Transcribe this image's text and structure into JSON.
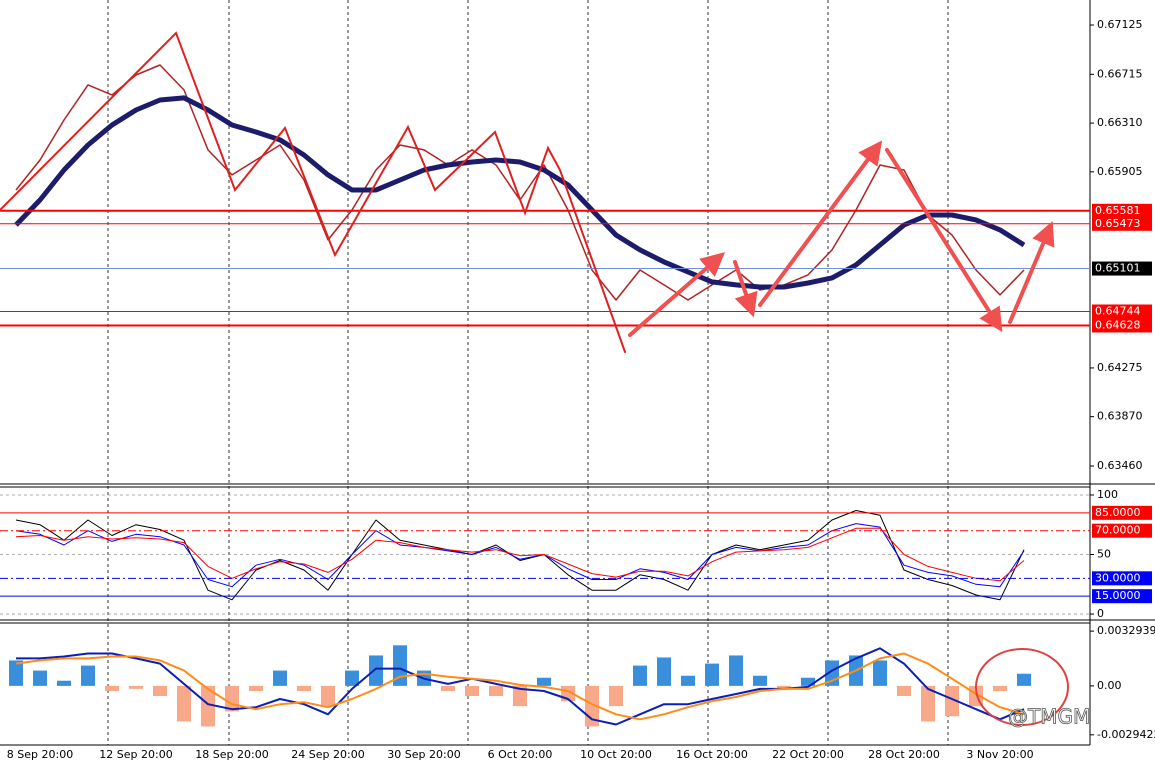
{
  "watermark": "@TMGM",
  "chart_data": [
    {
      "type": "line",
      "ylim": [
        0.63327,
        0.67333
      ],
      "yticks": [
        0.67125,
        0.66715,
        {
          "value": 0.6631,
          "label": "0.66310"
        },
        0.65905,
        0.64275,
        {
          "value": 0.6387,
          "label": "0.63870"
        },
        {
          "value": 0.6346,
          "label": "0.63460"
        }
      ],
      "levels": [
        {
          "value": 0.65581,
          "color": "#ff0000",
          "line_width": 2
        },
        {
          "value": 0.65473,
          "color": "#ff0000",
          "line_width": 1
        },
        {
          "value": 0.65101,
          "color": "#000000",
          "line_color": "#6f8fd8",
          "line_width": 1
        },
        {
          "value": 0.64744,
          "color": "#ff0000",
          "line_width": 1
        },
        {
          "value": 0.64628,
          "color": "#ff0000",
          "line_width": 2
        }
      ],
      "series": [
        {
          "color": "#b22222",
          "line_width": 1.5,
          "values": [
            0.65754,
            0.66003,
            0.66336,
            0.66627,
            0.66544,
            0.6671,
            0.66793,
            0.66585,
            0.66087,
            0.65879,
            0.66003,
            0.66128,
            0.65837,
            0.65339,
            0.65588,
            0.6592,
            0.66128,
            0.66087,
            0.65962,
            0.66087,
            0.65962,
            0.65671,
            0.65962,
            0.65588,
            0.65089,
            0.6484,
            0.65089,
            0.64965,
            0.6484,
            0.64965,
            0.65089,
            0.64923,
            0.64965,
            0.65048,
            0.65256,
            0.65588,
            0.65962,
            0.6592,
            0.65546,
            0.6538,
            0.65089,
            0.64882,
            0.65089
          ]
        },
        {
          "color": "#1c1c6b",
          "line_width": 5,
          "values": [
            0.65463,
            0.65671,
            0.6592,
            0.66128,
            0.66294,
            0.66419,
            0.66502,
            0.66519,
            0.66419,
            0.66294,
            0.66236,
            0.6617,
            0.66045,
            0.65879,
            0.65754,
            0.65754,
            0.65837,
            0.6592,
            0.65962,
            0.65987,
            0.66003,
            0.65987,
            0.6592,
            0.65796,
            0.65588,
            0.6538,
            0.65256,
            0.65156,
            0.65073,
            0.6499,
            0.64965,
            0.64948,
            0.64948,
            0.64981,
            0.65023,
            0.65131,
            0.65297,
            0.65463,
            0.65546,
            0.65546,
            0.65505,
            0.65422,
            0.65297
          ]
        }
      ]
    },
    {
      "type": "line",
      "ylim": [
        -5,
        106.7
      ],
      "yticks": [
        100,
        50,
        0
      ],
      "grid": true,
      "levels": [
        {
          "value": 85,
          "label": "85.0000",
          "color": "#ff0000",
          "style": "solid"
        },
        {
          "value": 70,
          "label": "70.0000",
          "color": "#ff0000",
          "style": "dashdot"
        },
        {
          "value": 30,
          "label": "30.0000",
          "color": "#0000ff",
          "style": "dashdot"
        },
        {
          "value": 15,
          "label": "15.0000",
          "color": "#0000ff",
          "style": "solid"
        }
      ],
      "series": [
        {
          "color": "#000000",
          "line_width": 1,
          "values": [
            79,
            75,
            62,
            79,
            66,
            75,
            71,
            62,
            20,
            12,
            37,
            45,
            37,
            20,
            50,
            79,
            62,
            58,
            54,
            50,
            58,
            45,
            50,
            33,
            20,
            20,
            33,
            29,
            20,
            50,
            58,
            54,
            58,
            62,
            79,
            87,
            83,
            37,
            29,
            24,
            16,
            12,
            54
          ]
        },
        {
          "color": "#0000ff",
          "line_width": 1,
          "values": [
            70,
            67,
            58,
            70,
            61,
            67,
            65,
            58,
            29,
            23,
            41,
            46,
            41,
            29,
            50,
            70,
            58,
            56,
            53,
            50,
            56,
            46,
            50,
            38,
            29,
            29,
            38,
            35,
            29,
            50,
            56,
            53,
            56,
            58,
            70,
            76,
            73,
            41,
            35,
            32,
            25,
            23,
            53
          ]
        },
        {
          "color": "#ff0000",
          "line_width": 1,
          "values": [
            65,
            66,
            62,
            65,
            63,
            64,
            63,
            60,
            40,
            30,
            38,
            44,
            42,
            35,
            46,
            62,
            60,
            56,
            54,
            52,
            54,
            49,
            50,
            42,
            34,
            31,
            36,
            36,
            32,
            44,
            52,
            53,
            54,
            56,
            64,
            72,
            72,
            50,
            40,
            35,
            30,
            28,
            45
          ]
        }
      ]
    },
    {
      "type": "macd",
      "ylim": [
        -0.0035552,
        0.0037819
      ],
      "yticks": [
        0.0032939,
        {
          "value": 0,
          "label": "0.00"
        },
        -0.0029422
      ],
      "categories": [
        null,
        "8 Sep 20:00",
        null,
        null,
        null,
        "12 Sep 20:00",
        null,
        null,
        null,
        "18 Sep 20:00",
        null,
        null,
        null,
        "24 Sep 20:00",
        null,
        null,
        null,
        "30 Sep 20:00",
        null,
        null,
        null,
        "6 Oct 20:00",
        null,
        null,
        null,
        "10 Oct 20:00",
        null,
        null,
        null,
        "16 Oct 20:00",
        null,
        null,
        null,
        "22 Oct 20:00",
        null,
        null,
        null,
        "28 Oct 20:00",
        null,
        null,
        null,
        "3 Nov 20:00",
        null
      ],
      "positive_color": "#3a8fdc",
      "negative_color": "#f7a98a",
      "histogram": [
        0.00153,
        0.00092,
        0.00031,
        0.00122,
        -0.00031,
        -0.00018,
        -0.00061,
        -0.00214,
        -0.00244,
        -0.00153,
        -0.00031,
        0.00092,
        -0.00031,
        -0.00122,
        0.00092,
        0.00183,
        0.00244,
        0.00092,
        -0.00031,
        -0.00061,
        -0.00061,
        -0.00122,
        0.00049,
        -0.00092,
        -0.00244,
        -0.00122,
        0.00122,
        0.00171,
        0.00061,
        0.00134,
        0.00183,
        0.00061,
        -0.00018,
        0.00049,
        0.00153,
        0.00183,
        0.00153,
        -0.00061,
        -0.00214,
        -0.00183,
        -0.00122,
        -0.00031,
        0.00073
      ],
      "series": [
        {
          "color": "#0a1fb5",
          "line_width": 2,
          "values": [
            0.00165,
            0.00165,
            0.00177,
            0.00195,
            0.00195,
            0.00165,
            0.00134,
            0.00012,
            -0.0011,
            -0.0014,
            -0.00128,
            -0.00079,
            -0.0011,
            -0.00171,
            -0.00018,
            0.00104,
            0.00104,
            0.00043,
            0.00012,
            0.00043,
            0.00012,
            -0.00018,
            -0.00031,
            -0.00079,
            -0.00201,
            -0.00232,
            -0.00171,
            -0.0011,
            -0.0011,
            -0.00079,
            -0.00049,
            -0.00018,
            -0.00018,
            -6e-05,
            0.00092,
            0.00165,
            0.00226,
            0.00134,
            -0.00018,
            -0.00079,
            -0.0014,
            -0.00201,
            -0.0014
          ]
        },
        {
          "color": "#ff8c1a",
          "line_width": 2,
          "values": [
            0.00134,
            0.00153,
            0.00165,
            0.00165,
            0.00177,
            0.00177,
            0.00153,
            0.00092,
            -0.00018,
            -0.0011,
            -0.0014,
            -0.0011,
            -0.00098,
            -0.00128,
            -0.00079,
            -0.00018,
            0.00055,
            0.00073,
            0.00055,
            0.00043,
            0.00031,
            6e-05,
            -6e-05,
            -0.00031,
            -0.0011,
            -0.00171,
            -0.00201,
            -0.00171,
            -0.00128,
            -0.00092,
            -0.00067,
            -0.00031,
            -0.00018,
            -0.00018,
            0.00031,
            0.00092,
            0.00165,
            0.00195,
            0.00134,
            0.00043,
            -0.00049,
            -0.00128,
            -0.00171
          ]
        }
      ]
    }
  ]
}
